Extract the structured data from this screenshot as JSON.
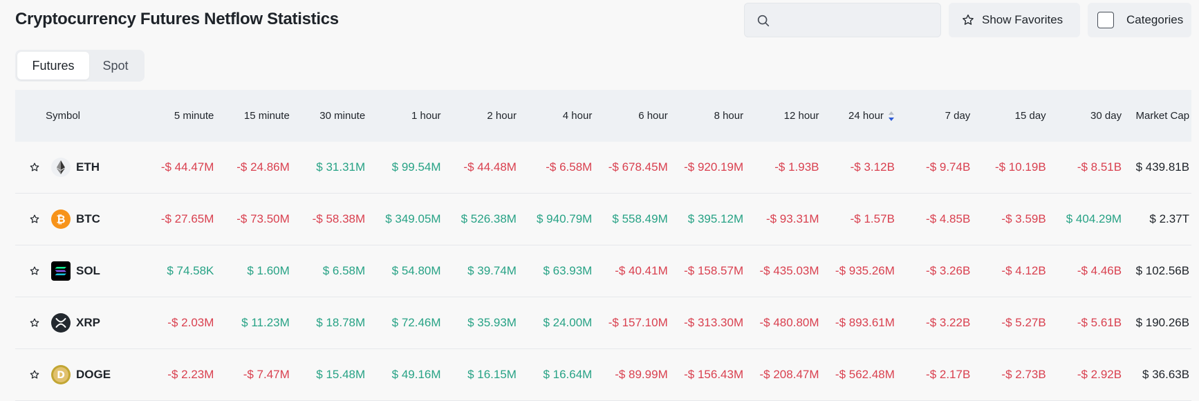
{
  "header": {
    "title": "Cryptocurrency Futures Netflow Statistics",
    "search_placeholder": "",
    "favorites_label": "Show Favorites",
    "categories_label": "Categories"
  },
  "tabs": [
    {
      "label": "Futures",
      "active": true
    },
    {
      "label": "Spot",
      "active": false
    }
  ],
  "table": {
    "columns": [
      "Symbol",
      "5 minute",
      "15 minute",
      "30 minute",
      "1 hour",
      "2 hour",
      "4 hour",
      "6 hour",
      "8 hour",
      "12 hour",
      "24 hour",
      "7 day",
      "15 day",
      "30 day",
      "Market Cap"
    ],
    "sorted_column": "24 hour",
    "rows": [
      {
        "symbol": "ETH",
        "icon": "eth-icon",
        "values": [
          "-$ 44.47M",
          "-$ 24.86M",
          "$ 31.31M",
          "$ 99.54M",
          "-$ 44.48M",
          "-$ 6.58M",
          "-$ 678.45M",
          "-$ 920.19M",
          "-$ 1.93B",
          "-$ 3.12B",
          "-$ 9.74B",
          "-$ 10.19B",
          "-$ 8.51B"
        ],
        "market_cap": "$ 439.81B"
      },
      {
        "symbol": "BTC",
        "icon": "btc-icon",
        "values": [
          "-$ 27.65M",
          "-$ 73.50M",
          "-$ 58.38M",
          "$ 349.05M",
          "$ 526.38M",
          "$ 940.79M",
          "$ 558.49M",
          "$ 395.12M",
          "-$ 93.31M",
          "-$ 1.57B",
          "-$ 4.85B",
          "-$ 3.59B",
          "$ 404.29M"
        ],
        "market_cap": "$ 2.37T"
      },
      {
        "symbol": "SOL",
        "icon": "sol-icon",
        "values": [
          "$ 74.58K",
          "$ 1.60M",
          "$ 6.58M",
          "$ 54.80M",
          "$ 39.74M",
          "$ 63.93M",
          "-$ 40.41M",
          "-$ 158.57M",
          "-$ 435.03M",
          "-$ 935.26M",
          "-$ 3.26B",
          "-$ 4.12B",
          "-$ 4.46B"
        ],
        "market_cap": "$ 102.56B"
      },
      {
        "symbol": "XRP",
        "icon": "xrp-icon",
        "values": [
          "-$ 2.03M",
          "$ 11.23M",
          "$ 18.78M",
          "$ 72.46M",
          "$ 35.93M",
          "$ 24.00M",
          "-$ 157.10M",
          "-$ 313.30M",
          "-$ 480.80M",
          "-$ 893.61M",
          "-$ 3.22B",
          "-$ 5.27B",
          "-$ 5.61B"
        ],
        "market_cap": "$ 190.26B"
      },
      {
        "symbol": "DOGE",
        "icon": "doge-icon",
        "values": [
          "-$ 2.23M",
          "-$ 7.47M",
          "$ 15.48M",
          "$ 49.16M",
          "$ 16.15M",
          "$ 16.64M",
          "-$ 89.99M",
          "-$ 156.43M",
          "-$ 208.47M",
          "-$ 562.48M",
          "-$ 2.17B",
          "-$ 2.73B",
          "-$ 2.92B"
        ],
        "market_cap": "$ 36.63B"
      }
    ]
  },
  "colors": {
    "positive": "#27a285",
    "negative": "#d9404f",
    "sort_up": "#b7bdc6",
    "sort_down": "#2d5bd6"
  }
}
